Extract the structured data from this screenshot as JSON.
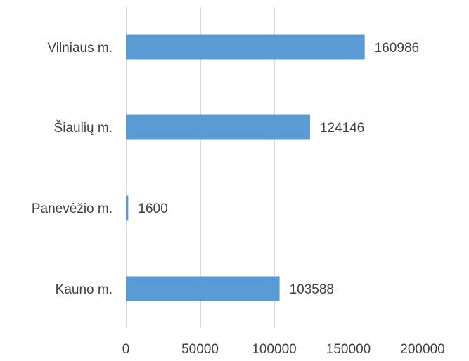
{
  "chart_data": {
    "type": "bar",
    "orientation": "horizontal",
    "title": "",
    "xlabel": "",
    "ylabel": "",
    "categories": [
      "Vilniaus m.",
      "Šiaulių m.",
      "Panevėžio m.",
      "Kauno m."
    ],
    "values": [
      160986,
      124146,
      1600,
      103588
    ],
    "xlim": [
      0,
      200000
    ],
    "xticks": [
      0,
      50000,
      100000,
      150000,
      200000
    ],
    "grid": "vertical",
    "legend": "none",
    "bar_color": "#5B9BD5",
    "grid_color": "#D9D9D9",
    "text_color": "#404040"
  }
}
